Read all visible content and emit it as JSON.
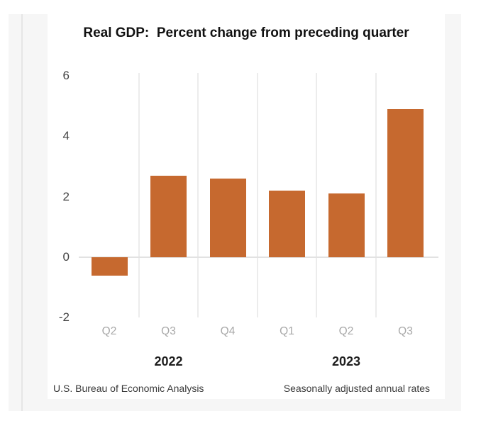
{
  "header": {
    "title": "Real GDP:  Percent change from preceding quarter"
  },
  "footer": {
    "source": "U.S. Bureau of Economic Analysis",
    "note": "Seasonally adjusted annual rates"
  },
  "colors": {
    "bar": "#c6692f",
    "gridline": "#ececec",
    "zero_line": "#e2e2e2",
    "tick_label": "#454545",
    "quarter_label": "#a8a8a8",
    "year_label": "#1f1f1f",
    "title_text": "#111111",
    "footer_text": "#3a3a3a",
    "panel_bg": "#f6f6f6",
    "panel_line": "#e6e6e6",
    "card_bg": "#ffffff"
  },
  "chart_data": {
    "type": "bar",
    "title": "Real GDP:  Percent change from preceding quarter",
    "categories": [
      "Q2",
      "Q3",
      "Q4",
      "Q1",
      "Q2",
      "Q3"
    ],
    "values": [
      -0.6,
      2.7,
      2.6,
      2.2,
      2.1,
      4.9
    ],
    "year_groups": [
      {
        "label": "2022",
        "bar_indices": [
          0,
          1,
          2
        ]
      },
      {
        "label": "2023",
        "bar_indices": [
          3,
          4,
          5
        ]
      }
    ],
    "y_ticks": [
      6,
      4,
      2,
      0,
      -2
    ],
    "ylim": [
      -2,
      6
    ],
    "xlabel": "",
    "ylabel": "",
    "grid": "vertical separators between quarters, horizontal line at zero only",
    "legend": "none",
    "bar_color": "#c6692f",
    "source": "U.S. Bureau of Economic Analysis",
    "note": "Seasonally adjusted annual rates"
  }
}
